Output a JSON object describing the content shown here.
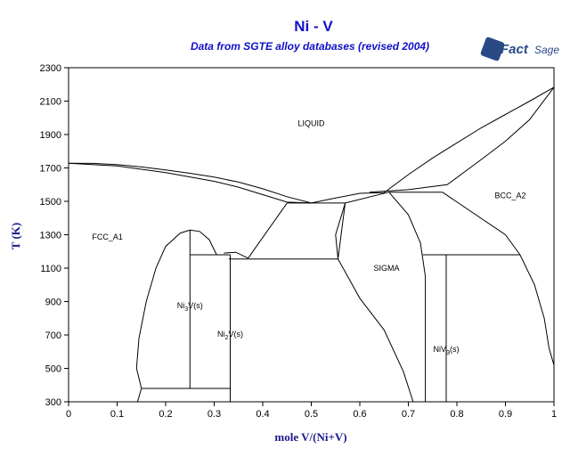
{
  "chart_data": {
    "type": "line",
    "title": "Ni - V",
    "subtitle": "Data from SGTE alloy databases (revised 2004)",
    "xlabel": "mole V/(Ni+V)",
    "ylabel": "T (K)",
    "xlim": [
      0,
      1
    ],
    "ylim": [
      300,
      2300
    ],
    "xticks": [
      "0",
      "0.1",
      "0.2",
      "0.3",
      "0.4",
      "0.5",
      "0.6",
      "0.7",
      "0.8",
      "0.9",
      "1"
    ],
    "yticks": [
      "300",
      "500",
      "700",
      "900",
      "1100",
      "1300",
      "1500",
      "1700",
      "1900",
      "2100",
      "2300"
    ],
    "grid": false,
    "region_labels": [
      {
        "text": "LIQUID",
        "x": 0.5,
        "y": 1950
      },
      {
        "text": "FCC_A1",
        "x": 0.08,
        "y": 1270
      },
      {
        "text": "BCC_A2",
        "x": 0.91,
        "y": 1520
      },
      {
        "text": "SIGMA",
        "x": 0.655,
        "y": 1085
      },
      {
        "text": "Ni3V(s)",
        "x": 0.25,
        "y": 860,
        "main": "Ni",
        "sub1": "3",
        "mid": "V(s)"
      },
      {
        "text": "Ni2V(s)",
        "x": 0.333,
        "y": 690,
        "main": "Ni",
        "sub1": "2",
        "mid": "V(s)"
      },
      {
        "text": "NiV3(s)",
        "x": 0.778,
        "y": 600,
        "main": "NiV",
        "sub1": "3",
        "mid": "(s)"
      }
    ],
    "series": [
      {
        "values": [
          [
            0,
            1728
          ],
          [
            0.05,
            1727
          ],
          [
            0.1,
            1720
          ],
          [
            0.15,
            1706
          ],
          [
            0.2,
            1688
          ],
          [
            0.25,
            1668
          ],
          [
            0.3,
            1645
          ],
          [
            0.35,
            1615
          ],
          [
            0.4,
            1575
          ],
          [
            0.45,
            1528
          ],
          [
            0.5,
            1490
          ],
          [
            0.55,
            1520
          ],
          [
            0.6,
            1548
          ],
          [
            0.65,
            1552
          ],
          [
            0.7,
            1660
          ],
          [
            0.75,
            1760
          ],
          [
            0.8,
            1850
          ],
          [
            0.85,
            1940
          ],
          [
            0.9,
            2020
          ],
          [
            0.95,
            2100
          ],
          [
            1,
            2183
          ]
        ]
      },
      {
        "values": [
          [
            0,
            1728
          ],
          [
            0.1,
            1712
          ],
          [
            0.2,
            1672
          ],
          [
            0.3,
            1620
          ],
          [
            0.35,
            1585
          ],
          [
            0.4,
            1540
          ],
          [
            0.45,
            1495
          ],
          [
            0.5,
            1490
          ]
        ]
      },
      {
        "values": [
          [
            0.62,
            1555
          ],
          [
            0.7,
            1570
          ],
          [
            0.78,
            1600
          ],
          [
            0.85,
            1750
          ],
          [
            0.9,
            1860
          ],
          [
            0.95,
            1990
          ],
          [
            1,
            2183
          ]
        ]
      },
      {
        "values": [
          [
            0.45,
            1490
          ],
          [
            0.57,
            1490
          ]
        ]
      },
      {
        "values": [
          [
            0.45,
            1490
          ],
          [
            0.37,
            1160
          ]
        ]
      },
      {
        "values": [
          [
            0.57,
            1490
          ],
          [
            0.66,
            1555
          ]
        ]
      },
      {
        "values": [
          [
            0.57,
            1490
          ],
          [
            0.555,
            1155
          ]
        ]
      },
      {
        "values": [
          [
            0.57,
            1490
          ],
          [
            0.55,
            1300
          ],
          [
            0.555,
            1155
          ]
        ]
      },
      {
        "values": [
          [
            0.66,
            1555
          ],
          [
            0.77,
            1555
          ]
        ]
      },
      {
        "values": [
          [
            0.77,
            1555
          ],
          [
            0.9,
            1300
          ],
          [
            0.93,
            1180
          ]
        ]
      },
      {
        "values": [
          [
            0.33,
            1155
          ],
          [
            0.555,
            1155
          ]
        ]
      },
      {
        "values": [
          [
            0.555,
            1155
          ],
          [
            0.6,
            920
          ],
          [
            0.65,
            730
          ],
          [
            0.69,
            480
          ],
          [
            0.71,
            300
          ]
        ]
      },
      {
        "values": [
          [
            0.66,
            1555
          ],
          [
            0.7,
            1420
          ],
          [
            0.725,
            1250
          ],
          [
            0.735,
            1050
          ],
          [
            0.735,
            300
          ]
        ]
      },
      {
        "values": [
          [
            0.73,
            1180
          ],
          [
            0.93,
            1180
          ]
        ]
      },
      {
        "values": [
          [
            0.778,
            1180
          ],
          [
            0.778,
            300
          ]
        ]
      },
      {
        "values": [
          [
            0.93,
            1180
          ],
          [
            0.96,
            1000
          ],
          [
            0.98,
            800
          ],
          [
            0.99,
            620
          ],
          [
            1,
            520
          ]
        ]
      },
      {
        "values": [
          [
            0.142,
            300
          ],
          [
            0.15,
            380
          ],
          [
            0.14,
            500
          ],
          [
            0.145,
            680
          ],
          [
            0.16,
            900
          ],
          [
            0.18,
            1100
          ],
          [
            0.2,
            1230
          ],
          [
            0.23,
            1310
          ],
          [
            0.25,
            1328
          ],
          [
            0.27,
            1320
          ],
          [
            0.29,
            1270
          ],
          [
            0.305,
            1180
          ]
        ]
      },
      {
        "values": [
          [
            0.25,
            1180
          ],
          [
            0.333,
            1180
          ]
        ]
      },
      {
        "values": [
          [
            0.25,
            1328
          ],
          [
            0.25,
            380
          ]
        ]
      },
      {
        "values": [
          [
            0.15,
            380
          ],
          [
            0.333,
            380
          ]
        ]
      },
      {
        "values": [
          [
            0.333,
            1180
          ],
          [
            0.333,
            300
          ]
        ]
      },
      {
        "values": [
          [
            0.32,
            1190
          ],
          [
            0.345,
            1195
          ],
          [
            0.37,
            1160
          ]
        ]
      }
    ]
  }
}
